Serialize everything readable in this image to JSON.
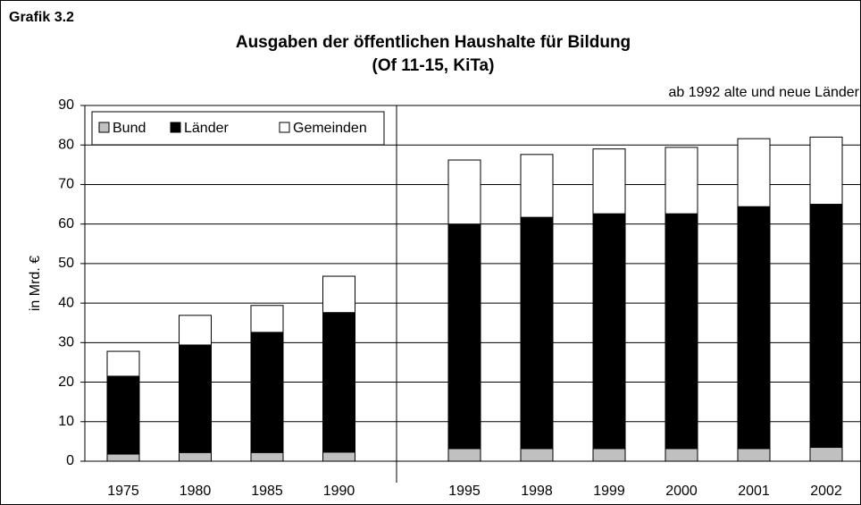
{
  "chart_data": {
    "type": "stacked_bar",
    "label": "Grafik 3.2",
    "title": "Ausgaben der öffentlichen Haushalte für Bildung",
    "subtitle": "(Of 11-15, KiTa)",
    "annotation": "ab 1992 alte und neue Länder",
    "ylabel": "in Mrd. €",
    "categories": [
      "1975",
      "1980",
      "1985",
      "1990",
      "1995",
      "1998",
      "1999",
      "2000",
      "2001",
      "2002"
    ],
    "series": [
      {
        "name": "Bund",
        "color": "#c0c0c0",
        "values": [
          1.8,
          2.2,
          2.2,
          2.3,
          3.2,
          3.2,
          3.2,
          3.2,
          3.2,
          3.5
        ]
      },
      {
        "name": "Länder",
        "color": "#000000",
        "values": [
          19.7,
          27.2,
          30.4,
          35.3,
          56.8,
          58.5,
          59.4,
          59.4,
          61.2,
          61.5
        ]
      },
      {
        "name": "Gemeinden",
        "color": "#ffffff",
        "values": [
          6.3,
          7.5,
          6.8,
          9.2,
          16.2,
          15.9,
          16.4,
          16.8,
          17.2,
          17.0
        ]
      }
    ],
    "ylim": [
      0,
      90
    ],
    "yticks": [
      0,
      10,
      20,
      30,
      40,
      50,
      60,
      70,
      80,
      90
    ],
    "grid": true,
    "legend": "top-left"
  }
}
